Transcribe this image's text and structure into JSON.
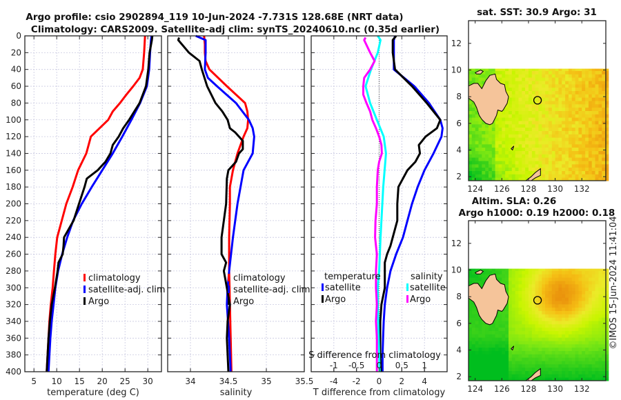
{
  "header": {
    "title_line1": "Argo profile: csio 2902894_119 10-Jun-2024 -7.731S 128.68E (NRT data)",
    "title_line2": "Climatology: CARS2009. Satellite-adj clim: synTS_20240610.nc (0.35d earlier)"
  },
  "footer": {
    "copyright": "©IMOS 15-Jun-2024 11:41:04"
  },
  "colors": {
    "climatology": "#ff0000",
    "satellite": "#0000ff",
    "argo": "#000000",
    "sal_satellite": "#00ffff",
    "sal_argo": "#ff00ff",
    "land": "#f5c49a"
  },
  "chart_data": [
    {
      "id": "temperature",
      "type": "line",
      "xlabel": "temperature (deg C)",
      "ylabel": "",
      "xlim": [
        3,
        33
      ],
      "ylim": [
        400,
        0
      ],
      "xticks": [
        5,
        10,
        15,
        20,
        25,
        30
      ],
      "yticks": [
        0,
        20,
        40,
        60,
        80,
        100,
        120,
        140,
        160,
        180,
        200,
        220,
        240,
        260,
        280,
        300,
        320,
        340,
        360,
        380,
        400
      ],
      "grid": true,
      "legend": {
        "placement": "center-right",
        "entries": [
          "climatology",
          "satellite-adj. clim",
          "Argo"
        ]
      },
      "series": [
        {
          "name": "climatology",
          "color": "#ff0000",
          "depth": [
            0,
            20,
            40,
            50,
            60,
            70,
            80,
            90,
            100,
            120,
            140,
            160,
            180,
            200,
            220,
            240,
            260,
            280,
            300,
            320,
            340,
            360,
            380,
            400
          ],
          "values": [
            29.4,
            29.2,
            28.9,
            28.2,
            26.8,
            25.3,
            23.9,
            22.3,
            21.3,
            17.5,
            16.5,
            14.7,
            13.5,
            12.1,
            11.1,
            10.1,
            9.7,
            9.4,
            9.1,
            8.7,
            8.4,
            8.2,
            8.0,
            7.8
          ]
        },
        {
          "name": "satellite-adj. clim",
          "color": "#0000ff",
          "depth": [
            0,
            5,
            20,
            40,
            60,
            80,
            100,
            120,
            140,
            160,
            180,
            200,
            220,
            240,
            260,
            280,
            300,
            320,
            340,
            360,
            380,
            400
          ],
          "values": [
            30.8,
            30.7,
            30.5,
            30.3,
            29.8,
            28.3,
            26.4,
            24.4,
            22.3,
            20.0,
            17.7,
            15.5,
            13.6,
            12.3,
            11.2,
            10.3,
            9.7,
            9.3,
            8.9,
            8.6,
            8.4,
            8.2
          ]
        },
        {
          "name": "Argo",
          "color": "#000000",
          "depth": [
            0,
            5,
            20,
            40,
            60,
            80,
            100,
            110,
            120,
            130,
            140,
            150,
            160,
            170,
            180,
            200,
            220,
            240,
            250,
            260,
            270,
            280,
            300,
            320,
            340,
            360,
            380,
            400
          ],
          "values": [
            31.0,
            30.9,
            30.4,
            30.1,
            29.6,
            28.2,
            25.9,
            24.6,
            23.6,
            22.3,
            21.8,
            20.7,
            19.0,
            16.6,
            16.1,
            14.9,
            13.7,
            11.6,
            11.5,
            11.3,
            10.4,
            10.2,
            9.6,
            8.9,
            8.5,
            8.2,
            8.0,
            7.8
          ]
        }
      ]
    },
    {
      "id": "salinity",
      "type": "line",
      "xlabel": "salinity",
      "xlim": [
        33.7,
        35.5
      ],
      "ylim": [
        400,
        0
      ],
      "xticks": [
        34,
        34.5,
        35,
        35.5
      ],
      "xticklabels": [
        "34",
        "34.5",
        "35",
        "35.5"
      ],
      "grid": true,
      "legend": {
        "placement": "center-right",
        "entries": [
          "climatology",
          "satellite-adj. clim",
          "Argo"
        ]
      },
      "series": [
        {
          "name": "climatology",
          "color": "#ff0000",
          "depth": [
            0,
            10,
            20,
            30,
            40,
            60,
            80,
            90,
            100,
            110,
            120,
            140,
            160,
            180,
            200,
            240,
            280,
            320,
            360,
            400
          ],
          "values": [
            34.18,
            34.19,
            34.19,
            34.2,
            34.25,
            34.48,
            34.72,
            34.75,
            34.76,
            34.75,
            34.7,
            34.62,
            34.56,
            34.52,
            34.52,
            34.51,
            34.51,
            34.52,
            34.53,
            34.54
          ]
        },
        {
          "name": "satellite-adj. clim",
          "color": "#0000ff",
          "depth": [
            0,
            5,
            20,
            40,
            50,
            60,
            80,
            100,
            110,
            120,
            140,
            160,
            180,
            200,
            240,
            280,
            300,
            320,
            360,
            400
          ],
          "values": [
            34.07,
            34.2,
            34.2,
            34.19,
            34.23,
            34.35,
            34.6,
            34.77,
            34.82,
            34.84,
            34.82,
            34.7,
            34.66,
            34.62,
            34.56,
            34.51,
            34.49,
            34.48,
            34.51,
            34.53
          ]
        },
        {
          "name": "Argo",
          "color": "#000000",
          "depth": [
            2,
            5,
            20,
            30,
            40,
            60,
            80,
            90,
            100,
            110,
            115,
            125,
            135,
            140,
            150,
            160,
            170,
            200,
            220,
            240,
            250,
            260,
            270,
            280,
            300,
            320,
            340,
            360,
            380,
            400
          ],
          "values": [
            33.85,
            33.84,
            33.98,
            34.12,
            34.15,
            34.22,
            34.33,
            34.42,
            34.49,
            34.52,
            34.59,
            34.69,
            34.69,
            34.64,
            34.6,
            34.5,
            34.48,
            34.47,
            34.44,
            34.41,
            34.41,
            34.41,
            34.47,
            34.44,
            34.48,
            34.52,
            34.49,
            34.48,
            34.49,
            34.5
          ]
        }
      ]
    },
    {
      "id": "difference",
      "type": "line",
      "xlabel": "T difference from climatology",
      "xlabel_top": "S difference from climatology",
      "xlim": [
        -6,
        6
      ],
      "xlim_S": [
        -1.5,
        1.5
      ],
      "ylim": [
        400,
        0
      ],
      "xticks": [
        -4,
        -2,
        0,
        2,
        4
      ],
      "xticks_S": [
        -1,
        -0.5,
        0,
        0.5,
        1
      ],
      "xticklabels_S": [
        "-1",
        "-0.5",
        "0",
        "0.5",
        "1"
      ],
      "grid": true,
      "legend": {
        "placement": "center",
        "groups": [
          {
            "title": "temperature",
            "entries": [
              "satellite",
              "Argo"
            ]
          },
          {
            "title": "salinity",
            "entries": [
              "satellite",
              "Argo"
            ]
          }
        ]
      },
      "series": [
        {
          "name": "temperature satellite",
          "axis": "T",
          "color": "#0000ff",
          "depth": [
            0,
            5,
            20,
            40,
            60,
            80,
            100,
            110,
            120,
            140,
            160,
            180,
            200,
            220,
            240,
            260,
            280,
            300,
            320,
            340,
            360,
            380,
            400
          ],
          "values": [
            1.4,
            1.3,
            1.3,
            1.3,
            3.1,
            4.4,
            5.4,
            5.6,
            5.5,
            4.8,
            4.0,
            3.4,
            2.9,
            2.5,
            2.1,
            1.5,
            1.0,
            0.7,
            0.5,
            0.4,
            0.35,
            0.3,
            0.3
          ]
        },
        {
          "name": "temperature Argo",
          "axis": "T",
          "color": "#000000",
          "depth": [
            0,
            5,
            20,
            40,
            60,
            80,
            100,
            110,
            120,
            130,
            140,
            150,
            160,
            180,
            200,
            220,
            240,
            250,
            260,
            270,
            280,
            300,
            320,
            340,
            360,
            380,
            400
          ],
          "values": [
            1.5,
            1.2,
            1.2,
            1.4,
            2.9,
            4.2,
            5.4,
            5.1,
            4.1,
            3.5,
            3.6,
            3.2,
            2.5,
            1.7,
            1.6,
            1.6,
            1.2,
            1.0,
            0.7,
            0.5,
            0.5,
            0.5,
            0.2,
            0.1,
            0.1,
            0.1,
            0.15
          ]
        },
        {
          "name": "salinity satellite",
          "axis": "S",
          "color": "#00ffff",
          "depth": [
            0,
            5,
            20,
            40,
            60,
            80,
            100,
            120,
            140,
            160,
            180,
            200,
            240,
            280,
            300,
            320,
            360,
            400
          ],
          "values": [
            -0.03,
            0.03,
            -0.03,
            -0.18,
            -0.3,
            -0.2,
            -0.05,
            0.1,
            0.15,
            0.12,
            0.09,
            0.07,
            0.03,
            0.0,
            -0.03,
            -0.03,
            -0.01,
            0.01
          ]
        },
        {
          "name": "salinity Argo",
          "axis": "S",
          "color": "#ff00ff",
          "depth": [
            2,
            5,
            20,
            30,
            40,
            50,
            60,
            70,
            80,
            90,
            100,
            110,
            120,
            130,
            140,
            150,
            160,
            180,
            200,
            220,
            240,
            260,
            280,
            300,
            320,
            340,
            360,
            380,
            400
          ],
          "values": [
            -0.3,
            -0.33,
            -0.2,
            -0.1,
            -0.2,
            -0.33,
            -0.35,
            -0.35,
            -0.28,
            -0.2,
            -0.15,
            -0.07,
            0.0,
            0.05,
            0.06,
            0.0,
            -0.03,
            -0.05,
            -0.05,
            -0.08,
            -0.09,
            -0.05,
            -0.07,
            -0.07,
            -0.05,
            -0.07,
            -0.05,
            -0.05,
            -0.05
          ]
        }
      ]
    },
    {
      "id": "sst_map",
      "type": "heatmap",
      "title": "sat. SST: 30.9 Argo: 31",
      "xlim": [
        123.5,
        133.8
      ],
      "ylim": [
        1.7,
        13.7
      ],
      "xticks": [
        124,
        126,
        128,
        130,
        132
      ],
      "yticks": [
        2,
        4,
        6,
        8,
        10,
        12
      ],
      "data_extent_lat_max": 10.1,
      "argo_position": {
        "lon": 128.68,
        "lat": 7.731
      }
    },
    {
      "id": "sla_map",
      "type": "heatmap",
      "title": "Altim. SLA: 0.26",
      "subtitle": "Argo h1000: 0.19 h2000: 0.18",
      "xlim": [
        123.5,
        133.8
      ],
      "ylim": [
        1.7,
        13.7
      ],
      "xticks": [
        124,
        126,
        128,
        130,
        132
      ],
      "yticks": [
        2,
        4,
        6,
        8,
        10,
        12
      ],
      "data_extent_lat_max": 10.1,
      "argo_position": {
        "lon": 128.68,
        "lat": 7.731
      }
    }
  ]
}
